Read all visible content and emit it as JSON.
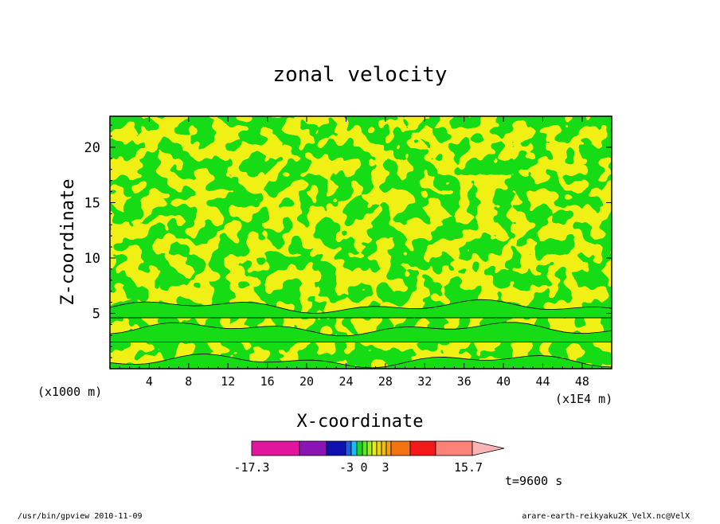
{
  "chart_data": {
    "type": "heatmap",
    "title": "zonal velocity",
    "xlabel": "X-coordinate",
    "ylabel": "Z-coordinate",
    "x_unit_label": "(x1E4 m)",
    "y_unit_label": "(x1000 m)",
    "xlim": [
      0,
      51
    ],
    "ylim": [
      0,
      22.8
    ],
    "x_ticks": [
      "4",
      "8",
      "12",
      "16",
      "20",
      "24",
      "28",
      "32",
      "36",
      "40",
      "44",
      "48"
    ],
    "y_ticks": [
      "5",
      "10",
      "15",
      "20"
    ],
    "x_tick_values": [
      4,
      8,
      12,
      16,
      20,
      24,
      28,
      32,
      36,
      40,
      44,
      48
    ],
    "y_tick_values": [
      5,
      10,
      15,
      20
    ],
    "colorbar": {
      "min_label": "-17.3",
      "max_label": "15.7",
      "tick_labels": [
        "-3",
        "0",
        "3"
      ],
      "levels": [
        -17.3,
        -12.2,
        -7.1,
        -3,
        -2,
        -1,
        0,
        0.5,
        1,
        1.5,
        2,
        2.5,
        3,
        5.2,
        7.9,
        10.6,
        15.7
      ],
      "colors": [
        "#e0169e",
        "#8a14b4",
        "#1010b0",
        "#1a5ee0",
        "#20b8f0",
        "#14d828",
        "#5ae826",
        "#a4ee1e",
        "#ecec14",
        "#ecd612",
        "#f0ba10",
        "#f4a010",
        "#f47414",
        "#f41818",
        "#fa8278",
        "#fab4b4"
      ]
    },
    "dominant_colors": {
      "positive": "#f0f014",
      "negative": "#16dc16"
    },
    "time_label": "t=9600 s"
  },
  "footer": {
    "left": "/usr/bin/gpview   2010-11-09",
    "right": "arare-earth-reikyaku2K_VelX.nc@VelX"
  }
}
